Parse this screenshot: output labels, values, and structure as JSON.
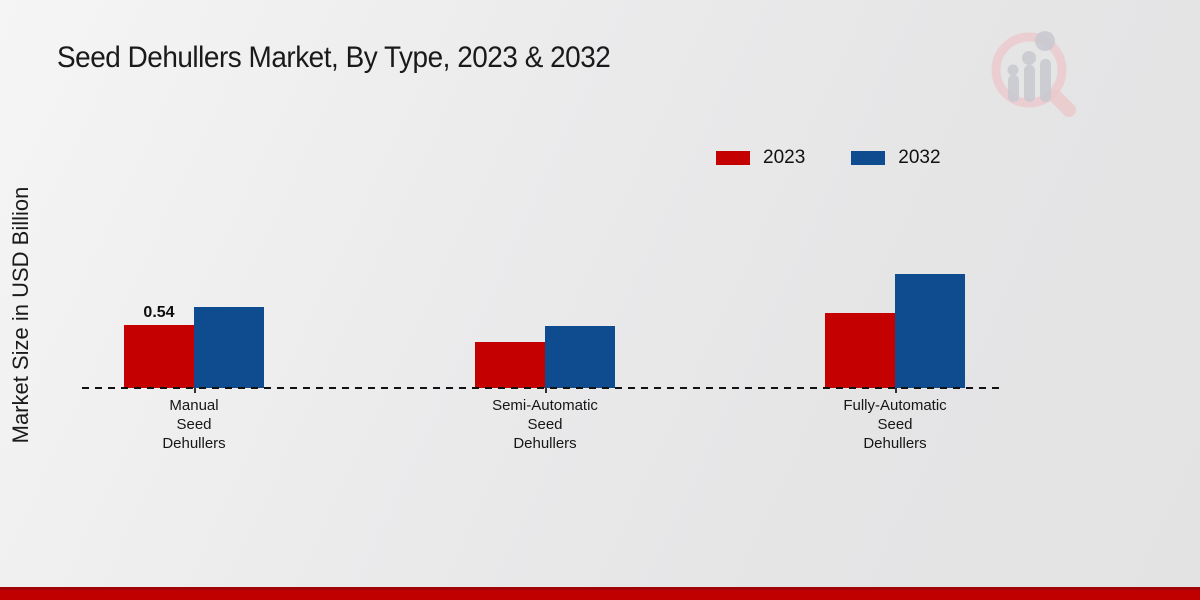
{
  "page": {
    "title": "Seed Dehullers Market, By Type, 2023 & 2032",
    "ylabel": "Market Size in USD Billion",
    "footer_color": "#c00000",
    "background_color": "#e8e8e9"
  },
  "legend": {
    "position": "top-right",
    "items": [
      {
        "label": "2023",
        "color": "#c40000"
      },
      {
        "label": "2032",
        "color": "#0f4c8f"
      }
    ]
  },
  "chart_data": {
    "type": "bar",
    "title": "Seed Dehullers Market, By Type, 2023 & 2032",
    "xlabel": "",
    "ylabel": "Market Size in USD Billion",
    "categories": [
      "Manual Seed Dehullers",
      "Semi-Automatic Seed Dehullers",
      "Fully-Automatic Seed Dehullers"
    ],
    "series": [
      {
        "name": "2023",
        "color": "#c40000",
        "values": [
          0.54,
          0.39,
          0.64
        ]
      },
      {
        "name": "2032",
        "color": "#0f4c8f",
        "values": [
          0.69,
          0.53,
          0.98
        ]
      }
    ],
    "point_labels": [
      [
        "0.54",
        "",
        ""
      ],
      [
        "",
        "",
        ""
      ]
    ],
    "ylim": [
      0,
      1.1
    ],
    "grid": false,
    "legend_position": "top-right",
    "baseline_style": "dashed",
    "note": "only the first 2023 bar carries a printed data label (0.54); other values estimated from bar heights"
  }
}
